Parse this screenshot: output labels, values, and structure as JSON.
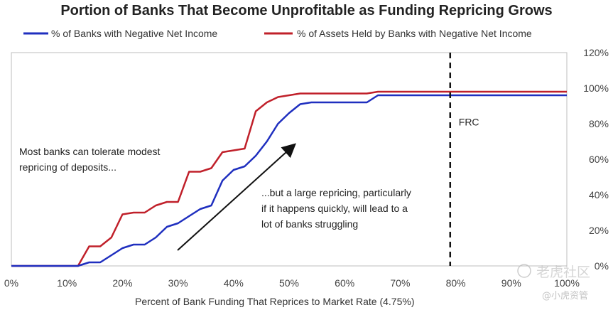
{
  "chart_data": {
    "type": "line",
    "title": "Portion of Banks That Become Unprofitable as Funding Repricing Grows",
    "xlabel": "Percent of Bank Funding That Reprices to Market Rate (4.75%)",
    "ylabel": "",
    "x_ticks": [
      "0%",
      "10%",
      "20%",
      "30%",
      "40%",
      "50%",
      "60%",
      "70%",
      "80%",
      "90%",
      "100%"
    ],
    "y_ticks": [
      "0%",
      "20%",
      "40%",
      "60%",
      "80%",
      "100%",
      "120%"
    ],
    "xlim": [
      0,
      100
    ],
    "ylim": [
      0,
      120
    ],
    "legend_position": "top",
    "series": [
      {
        "name": "% of Banks with Negative Net Income",
        "color": "#1f2fbf",
        "x": [
          0,
          12,
          14,
          16,
          18,
          20,
          22,
          24,
          26,
          28,
          30,
          32,
          34,
          36,
          38,
          40,
          42,
          44,
          46,
          48,
          50,
          52,
          54,
          56,
          58,
          60,
          62,
          64,
          66,
          68,
          70,
          80,
          90,
          100
        ],
        "y": [
          0,
          0,
          2,
          2,
          6,
          10,
          12,
          12,
          16,
          22,
          24,
          28,
          32,
          34,
          48,
          54,
          56,
          62,
          70,
          80,
          86,
          91,
          92,
          92,
          92,
          92,
          92,
          92,
          96,
          96,
          96,
          96,
          96,
          96
        ]
      },
      {
        "name": "% of Assets Held by Banks with Negative Net Income",
        "color": "#c0202a",
        "x": [
          0,
          12,
          14,
          16,
          18,
          20,
          22,
          24,
          26,
          28,
          30,
          32,
          34,
          36,
          38,
          40,
          42,
          44,
          46,
          48,
          50,
          52,
          54,
          56,
          58,
          60,
          62,
          64,
          66,
          68,
          70,
          80,
          90,
          100
        ],
        "y": [
          0,
          0,
          11,
          11,
          16,
          29,
          30,
          30,
          34,
          36,
          36,
          53,
          53,
          55,
          64,
          65,
          66,
          87,
          92,
          95,
          96,
          97,
          97,
          97,
          97,
          97,
          97,
          97,
          98,
          98,
          98,
          98,
          98,
          98
        ]
      }
    ],
    "reference_line": {
      "x": 79,
      "label": "FRC",
      "style": "dashed",
      "color": "#111111"
    },
    "annotations": [
      "Most banks can tolerate modest",
      "repricing of deposits...",
      "...but a large repricing, particularly",
      "if it happens quickly, will lead to a",
      "lot of banks struggling"
    ],
    "grid": false
  },
  "watermark": {
    "line1": "老虎社区",
    "line2": "@小虎资管"
  }
}
